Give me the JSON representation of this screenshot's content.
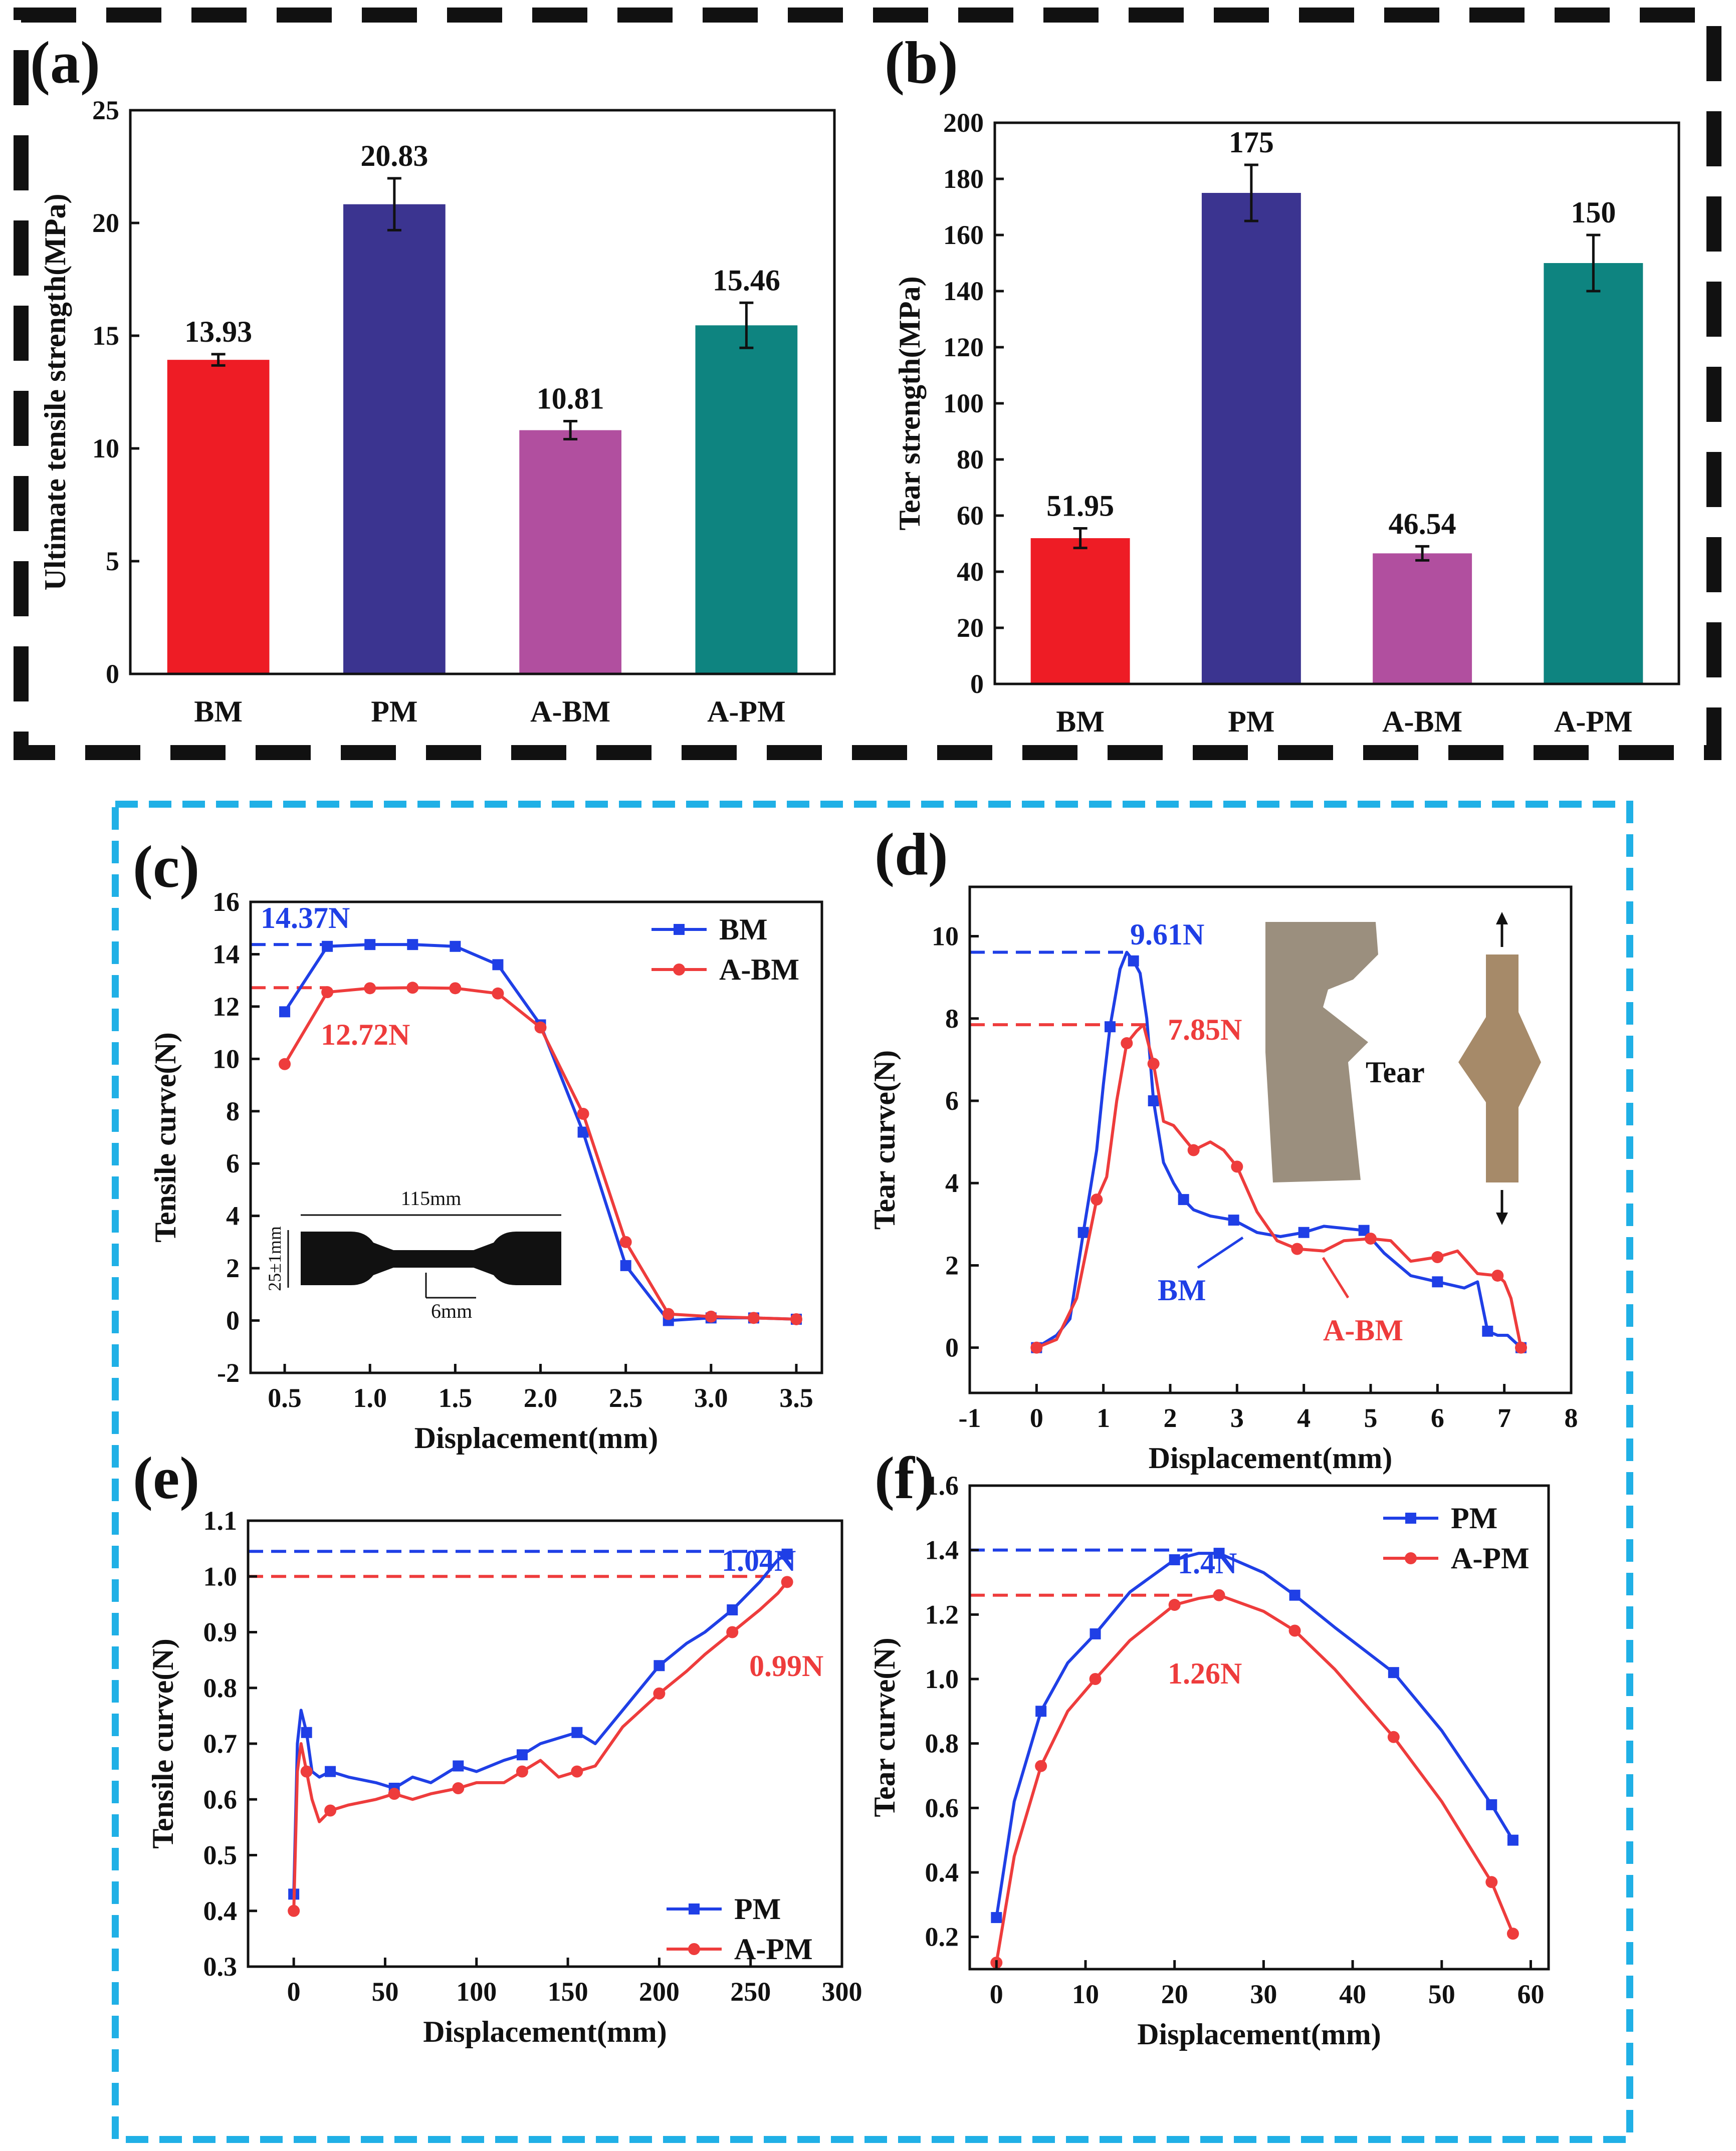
{
  "colors": {
    "red": "#ee1c25",
    "navy": "#3b3490",
    "magenta": "#b14f9f",
    "teal": "#0e8480",
    "blue": "#1f3fe6",
    "redline": "#ee3c3c",
    "black_dash": "#111111",
    "cyan_dash": "#20b0e6"
  },
  "chart_data": [
    {
      "id": "a",
      "type": "bar",
      "panel_label": "(a)",
      "categories": [
        "BM",
        "PM",
        "A-BM",
        "A-PM"
      ],
      "values": [
        13.93,
        20.83,
        10.81,
        15.46
      ],
      "value_labels": [
        "13.93",
        "20.83",
        "10.81",
        "15.46"
      ],
      "errors": [
        0.25,
        1.15,
        0.4,
        1.0
      ],
      "colors": [
        "#ee1c25",
        "#3b3490",
        "#b14f9f",
        "#0e8480"
      ],
      "ylabel": "Ultimate tensile strength(MPa)",
      "xlabel": "",
      "ylim": [
        0,
        25
      ],
      "yticks": [
        0,
        5,
        10,
        15,
        20,
        25
      ]
    },
    {
      "id": "b",
      "type": "bar",
      "panel_label": "(b)",
      "categories": [
        "BM",
        "PM",
        "A-BM",
        "A-PM"
      ],
      "values": [
        51.95,
        175,
        46.54,
        150
      ],
      "value_labels": [
        "51.95",
        "175",
        "46.54",
        "150"
      ],
      "errors": [
        3.5,
        10,
        2.5,
        10
      ],
      "colors": [
        "#ee1c25",
        "#3b3490",
        "#b14f9f",
        "#0e8480"
      ],
      "ylabel": "Tear strength(MPa)",
      "xlabel": "",
      "ylim": [
        0,
        200
      ],
      "yticks": [
        0,
        20,
        40,
        60,
        80,
        100,
        120,
        140,
        160,
        180,
        200
      ]
    },
    {
      "id": "c",
      "type": "line",
      "panel_label": "(c)",
      "xlabel": "Displacement(mm)",
      "ylabel": "Tensile curve(N)",
      "xlim": [
        0.3,
        3.65
      ],
      "ylim": [
        -2,
        16
      ],
      "xticks": [
        0.5,
        1.0,
        1.5,
        2.0,
        2.5,
        3.0,
        3.5
      ],
      "xtick_labels": [
        "0.5",
        "1.0",
        "1.5",
        "2.0",
        "2.5",
        "3.0",
        "3.5"
      ],
      "yticks": [
        -2,
        0,
        2,
        4,
        6,
        8,
        10,
        12,
        14,
        16
      ],
      "legend": [
        "BM",
        "A-BM"
      ],
      "legend_position": "top-right",
      "series": [
        {
          "name": "BM",
          "color": "#1f3fe6",
          "marker": "square",
          "x": [
            0.5,
            0.75,
            1.0,
            1.25,
            1.5,
            1.75,
            2.0,
            2.25,
            2.5,
            2.75,
            3.0,
            3.25,
            3.5
          ],
          "y": [
            11.8,
            14.3,
            14.37,
            14.37,
            14.3,
            13.6,
            11.3,
            7.2,
            2.1,
            0.0,
            0.1,
            0.1,
            0.05
          ]
        },
        {
          "name": "A-BM",
          "color": "#ee3c3c",
          "marker": "circle",
          "x": [
            0.5,
            0.75,
            1.0,
            1.25,
            1.5,
            1.75,
            2.0,
            2.25,
            2.5,
            2.75,
            3.0,
            3.25,
            3.5
          ],
          "y": [
            9.8,
            12.55,
            12.7,
            12.72,
            12.7,
            12.5,
            11.2,
            7.9,
            3.0,
            0.25,
            0.15,
            0.1,
            0.05
          ]
        }
      ],
      "annotations": [
        {
          "text": "14.37N",
          "color": "#1f3fe6",
          "y": 14.37
        },
        {
          "text": "12.72N",
          "color": "#ee3c3c",
          "y": 12.72
        }
      ],
      "inset_labels": [
        "115mm",
        "25±1mm",
        "6mm"
      ]
    },
    {
      "id": "d",
      "type": "line",
      "panel_label": "(d)",
      "xlabel": "Displacement(mm)",
      "ylabel": "Tear curve(N)",
      "xlim": [
        -1,
        8
      ],
      "ylim": [
        -1.1,
        11.2
      ],
      "xticks": [
        -1,
        0,
        1,
        2,
        3,
        4,
        5,
        6,
        7,
        8
      ],
      "yticks": [
        0,
        2,
        4,
        6,
        8,
        10
      ],
      "series": [
        {
          "name": "BM",
          "color": "#1f3fe6",
          "marker": "square",
          "x": [
            0,
            0.3,
            0.5,
            0.7,
            0.9,
            1.0,
            1.1,
            1.25,
            1.35,
            1.45,
            1.55,
            1.65,
            1.75,
            1.9,
            2.05,
            2.2,
            2.35,
            2.6,
            2.95,
            3.3,
            3.65,
            4.0,
            4.3,
            4.6,
            4.9,
            5.2,
            5.6,
            6.0,
            6.4,
            6.6,
            6.75,
            6.9,
            7.05,
            7.25
          ],
          "y": [
            0,
            0.3,
            0.7,
            2.8,
            4.8,
            6.4,
            7.8,
            9.2,
            9.61,
            9.4,
            9.1,
            8.0,
            6.0,
            4.5,
            4.0,
            3.6,
            3.35,
            3.2,
            3.1,
            2.8,
            2.7,
            2.8,
            2.95,
            2.9,
            2.85,
            2.3,
            1.75,
            1.6,
            1.45,
            1.6,
            0.4,
            0.3,
            0.3,
            0
          ]
        },
        {
          "name": "A-BM",
          "color": "#ee3c3c",
          "marker": "circle",
          "x": [
            0,
            0.3,
            0.6,
            0.9,
            1.05,
            1.2,
            1.35,
            1.5,
            1.6,
            1.75,
            1.9,
            2.05,
            2.35,
            2.6,
            2.8,
            3.0,
            3.3,
            3.6,
            3.9,
            4.3,
            4.6,
            5.0,
            5.3,
            5.6,
            6.0,
            6.3,
            6.6,
            6.9,
            7.0,
            7.1,
            7.25
          ],
          "y": [
            0,
            0.2,
            1.2,
            3.6,
            4.15,
            6.0,
            7.4,
            7.7,
            7.85,
            6.9,
            5.5,
            5.4,
            4.8,
            5.0,
            4.8,
            4.4,
            3.3,
            2.6,
            2.4,
            2.35,
            2.6,
            2.65,
            2.6,
            2.1,
            2.2,
            2.35,
            1.8,
            1.75,
            1.6,
            1.2,
            0
          ]
        }
      ],
      "annotations": [
        {
          "text": "9.61N",
          "color": "#1f3fe6",
          "y": 9.61
        },
        {
          "text": "7.85N",
          "color": "#ee3c3c",
          "y": 7.85
        },
        {
          "text": "BM",
          "color": "#1f3fe6"
        },
        {
          "text": "A-BM",
          "color": "#ee3c3c"
        },
        {
          "text": "Tear",
          "color": "#111111"
        }
      ]
    },
    {
      "id": "e",
      "type": "line",
      "panel_label": "(e)",
      "xlabel": "Displacement(mm)",
      "ylabel": "Tensile curve(N)",
      "xlim": [
        -25,
        300
      ],
      "ylim": [
        0.3,
        1.1
      ],
      "xticks": [
        0,
        50,
        100,
        150,
        200,
        250,
        300
      ],
      "yticks": [
        0.3,
        0.4,
        0.5,
        0.6,
        0.7,
        0.8,
        0.9,
        1.0,
        1.1
      ],
      "ytick_labels": [
        "0.3",
        "0.4",
        "0.5",
        "0.6",
        "0.7",
        "0.8",
        "0.9",
        "1.0",
        "1.1"
      ],
      "legend": [
        "PM",
        "A-PM"
      ],
      "legend_position": "bottom-right",
      "series": [
        {
          "name": "PM",
          "color": "#1f3fe6",
          "marker": "square",
          "x": [
            0,
            2,
            4,
            7,
            10,
            14,
            20,
            30,
            45,
            55,
            65,
            75,
            90,
            100,
            115,
            125,
            135,
            145,
            155,
            165,
            180,
            200,
            215,
            225,
            240,
            255,
            265,
            270
          ],
          "y": [
            0.43,
            0.7,
            0.76,
            0.72,
            0.65,
            0.64,
            0.65,
            0.64,
            0.63,
            0.62,
            0.64,
            0.63,
            0.66,
            0.65,
            0.67,
            0.68,
            0.7,
            0.71,
            0.72,
            0.7,
            0.76,
            0.84,
            0.88,
            0.9,
            0.94,
            0.99,
            1.03,
            1.04
          ]
        },
        {
          "name": "A-PM",
          "color": "#ee3c3c",
          "marker": "circle",
          "x": [
            0,
            2,
            4,
            7,
            10,
            14,
            20,
            30,
            45,
            55,
            65,
            75,
            90,
            100,
            115,
            125,
            135,
            145,
            155,
            165,
            180,
            200,
            215,
            225,
            240,
            255,
            265,
            270
          ],
          "y": [
            0.4,
            0.65,
            0.7,
            0.65,
            0.6,
            0.56,
            0.58,
            0.59,
            0.6,
            0.61,
            0.6,
            0.61,
            0.62,
            0.63,
            0.63,
            0.65,
            0.67,
            0.64,
            0.65,
            0.66,
            0.73,
            0.79,
            0.83,
            0.86,
            0.9,
            0.94,
            0.97,
            0.99
          ]
        }
      ],
      "annotations": [
        {
          "text": "1.04N",
          "color": "#1f3fe6",
          "y": 1.045
        },
        {
          "text": "0.99N",
          "color": "#ee3c3c",
          "y": 1.0
        }
      ]
    },
    {
      "id": "f",
      "type": "line",
      "panel_label": "(f)",
      "xlabel": "Displacement(mm)",
      "ylabel": "Tear curve(N)",
      "xlim": [
        -3,
        62
      ],
      "ylim": [
        0.1,
        1.6
      ],
      "xticks": [
        0,
        10,
        20,
        30,
        40,
        50,
        60
      ],
      "yticks": [
        0.2,
        0.4,
        0.6,
        0.8,
        1.0,
        1.2,
        1.4,
        1.6
      ],
      "ytick_labels": [
        "0.2",
        "0.4",
        "0.6",
        "0.8",
        "1.0",
        "1.2",
        "1.4",
        "1.6"
      ],
      "legend": [
        "PM",
        "A-PM"
      ],
      "legend_position": "top-right",
      "series": [
        {
          "name": "PM",
          "color": "#1f3fe6",
          "marker": "square",
          "x": [
            0,
            2,
            5,
            8,
            11.1,
            15,
            20,
            22.7,
            25,
            30,
            33.5,
            38,
            44.6,
            50,
            55.6,
            58
          ],
          "y": [
            0.26,
            0.62,
            0.9,
            1.05,
            1.14,
            1.27,
            1.37,
            1.39,
            1.39,
            1.33,
            1.26,
            1.16,
            1.02,
            0.84,
            0.61,
            0.5
          ]
        },
        {
          "name": "A-PM",
          "color": "#ee3c3c",
          "marker": "circle",
          "x": [
            0,
            2,
            5,
            8,
            11.1,
            15,
            20,
            22.7,
            25,
            30,
            33.5,
            38,
            44.6,
            50,
            55.6,
            58
          ],
          "y": [
            0.12,
            0.45,
            0.73,
            0.9,
            1.0,
            1.12,
            1.23,
            1.25,
            1.26,
            1.21,
            1.15,
            1.03,
            0.82,
            0.62,
            0.37,
            0.21
          ]
        }
      ],
      "annotations": [
        {
          "text": "1.4N",
          "color": "#1f3fe6",
          "y": 1.4
        },
        {
          "text": "1.26N",
          "color": "#ee3c3c",
          "y": 1.26
        }
      ]
    }
  ]
}
